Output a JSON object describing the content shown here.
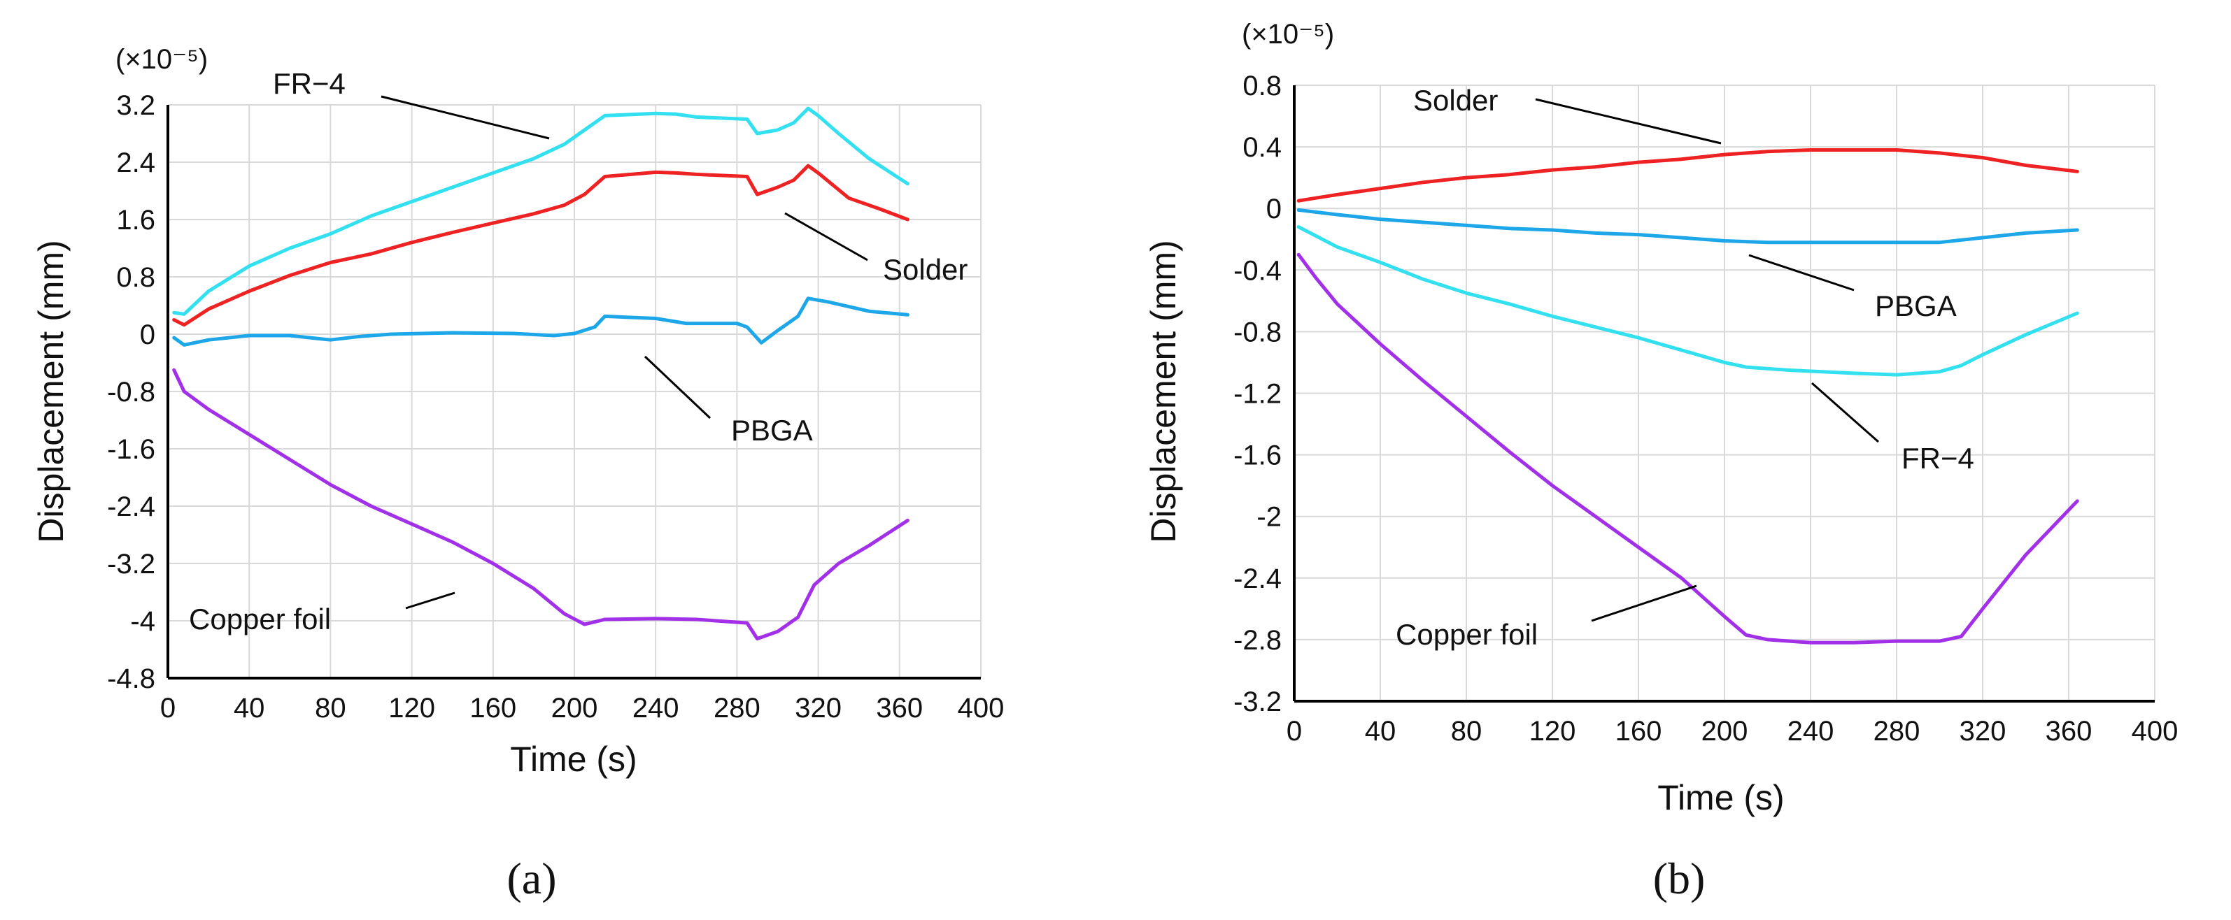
{
  "chart_data": [
    {
      "type": "line",
      "panel_label": "(a)",
      "multiplier_label": "(×10⁻⁵)",
      "xlabel": "Time (s)",
      "ylabel": "Displacement (mm)",
      "xlim": [
        0,
        400
      ],
      "ylim": [
        -4.8,
        3.2
      ],
      "xticks": [
        0,
        40,
        80,
        120,
        160,
        200,
        240,
        280,
        320,
        360,
        400
      ],
      "yticks": [
        3.2,
        2.4,
        1.6,
        0.8,
        0,
        -0.8,
        -1.6,
        -2.4,
        -3.2,
        -4,
        -4.8
      ],
      "xtick_labels": [
        "0",
        "40",
        "80",
        "120",
        "160",
        "200",
        "240",
        "280",
        "320",
        "360",
        "400"
      ],
      "ytick_labels": [
        "3.2",
        "2.4",
        "1.6",
        "0.8",
        "0",
        "-0.8",
        "-1.6",
        "-2.4",
        "-3.2",
        "-4",
        "-4.8"
      ],
      "grid": true,
      "series": [
        {
          "name": "FR−4",
          "color": "#33e0f0",
          "points": [
            [
              3,
              0.3
            ],
            [
              8,
              0.28
            ],
            [
              20,
              0.6
            ],
            [
              40,
              0.95
            ],
            [
              60,
              1.2
            ],
            [
              80,
              1.4
            ],
            [
              100,
              1.65
            ],
            [
              120,
              1.85
            ],
            [
              140,
              2.05
            ],
            [
              160,
              2.25
            ],
            [
              180,
              2.45
            ],
            [
              195,
              2.65
            ],
            [
              205,
              2.85
            ],
            [
              215,
              3.05
            ],
            [
              240,
              3.08
            ],
            [
              250,
              3.07
            ],
            [
              260,
              3.03
            ],
            [
              285,
              3.0
            ],
            [
              290,
              2.8
            ],
            [
              300,
              2.85
            ],
            [
              308,
              2.95
            ],
            [
              315,
              3.15
            ],
            [
              320,
              3.05
            ],
            [
              330,
              2.8
            ],
            [
              345,
              2.45
            ],
            [
              364,
              2.1
            ]
          ]
        },
        {
          "name": "Solder",
          "color": "#ee2222",
          "points": [
            [
              3,
              0.2
            ],
            [
              8,
              0.13
            ],
            [
              20,
              0.35
            ],
            [
              40,
              0.6
            ],
            [
              60,
              0.82
            ],
            [
              80,
              1.0
            ],
            [
              100,
              1.12
            ],
            [
              120,
              1.28
            ],
            [
              140,
              1.42
            ],
            [
              160,
              1.55
            ],
            [
              180,
              1.68
            ],
            [
              195,
              1.8
            ],
            [
              205,
              1.95
            ],
            [
              215,
              2.2
            ],
            [
              240,
              2.26
            ],
            [
              250,
              2.25
            ],
            [
              260,
              2.23
            ],
            [
              285,
              2.2
            ],
            [
              290,
              1.95
            ],
            [
              300,
              2.05
            ],
            [
              308,
              2.15
            ],
            [
              315,
              2.35
            ],
            [
              320,
              2.25
            ],
            [
              335,
              1.9
            ],
            [
              350,
              1.75
            ],
            [
              364,
              1.6
            ]
          ]
        },
        {
          "name": "PBGA",
          "color": "#1ea7e8",
          "points": [
            [
              3,
              -0.05
            ],
            [
              8,
              -0.15
            ],
            [
              20,
              -0.08
            ],
            [
              40,
              -0.02
            ],
            [
              60,
              -0.02
            ],
            [
              70,
              -0.05
            ],
            [
              80,
              -0.08
            ],
            [
              95,
              -0.03
            ],
            [
              110,
              0.0
            ],
            [
              140,
              0.02
            ],
            [
              170,
              0.01
            ],
            [
              190,
              -0.02
            ],
            [
              200,
              0.01
            ],
            [
              210,
              0.1
            ],
            [
              215,
              0.25
            ],
            [
              240,
              0.22
            ],
            [
              255,
              0.15
            ],
            [
              280,
              0.15
            ],
            [
              285,
              0.1
            ],
            [
              292,
              -0.12
            ],
            [
              300,
              0.05
            ],
            [
              310,
              0.25
            ],
            [
              315,
              0.5
            ],
            [
              325,
              0.45
            ],
            [
              345,
              0.32
            ],
            [
              364,
              0.27
            ]
          ]
        },
        {
          "name": "Copper foil",
          "color": "#a130e8",
          "points": [
            [
              3,
              -0.5
            ],
            [
              8,
              -0.8
            ],
            [
              20,
              -1.05
            ],
            [
              40,
              -1.4
            ],
            [
              60,
              -1.75
            ],
            [
              80,
              -2.1
            ],
            [
              100,
              -2.4
            ],
            [
              120,
              -2.65
            ],
            [
              140,
              -2.9
            ],
            [
              160,
              -3.2
            ],
            [
              180,
              -3.55
            ],
            [
              195,
              -3.9
            ],
            [
              205,
              -4.05
            ],
            [
              215,
              -3.98
            ],
            [
              240,
              -3.97
            ],
            [
              260,
              -3.98
            ],
            [
              285,
              -4.03
            ],
            [
              290,
              -4.25
            ],
            [
              300,
              -4.15
            ],
            [
              310,
              -3.95
            ],
            [
              318,
              -3.5
            ],
            [
              330,
              -3.2
            ],
            [
              345,
              -2.95
            ],
            [
              364,
              -2.6
            ]
          ]
        }
      ],
      "annotations": [
        {
          "text": "FR−4",
          "series": "FR−4"
        },
        {
          "text": "Solder",
          "series": "Solder"
        },
        {
          "text": "PBGA",
          "series": "PBGA"
        },
        {
          "text": "Copper foil",
          "series": "Copper foil"
        }
      ]
    },
    {
      "type": "line",
      "panel_label": "(b)",
      "multiplier_label": "(×10⁻⁵)",
      "xlabel": "Time (s)",
      "ylabel": "Displacement (mm)",
      "xlim": [
        0,
        400
      ],
      "ylim": [
        -3.2,
        0.8
      ],
      "xticks": [
        0,
        40,
        80,
        120,
        160,
        200,
        240,
        280,
        320,
        360,
        400
      ],
      "yticks": [
        0.8,
        0.4,
        0,
        -0.4,
        -0.8,
        -1.2,
        -1.6,
        -2,
        -2.4,
        -2.8,
        -3.2
      ],
      "xtick_labels": [
        "0",
        "40",
        "80",
        "120",
        "160",
        "200",
        "240",
        "280",
        "320",
        "360",
        "400"
      ],
      "ytick_labels": [
        "0.8",
        "0.4",
        "0",
        "-0.4",
        "-0.8",
        "-1.2",
        "-1.6",
        "-2",
        "-2.4",
        "-2.8",
        "-3.2"
      ],
      "grid": true,
      "series": [
        {
          "name": "Solder",
          "color": "#ee2222",
          "points": [
            [
              2,
              0.05
            ],
            [
              20,
              0.09
            ],
            [
              40,
              0.13
            ],
            [
              60,
              0.17
            ],
            [
              80,
              0.2
            ],
            [
              100,
              0.22
            ],
            [
              120,
              0.25
            ],
            [
              140,
              0.27
            ],
            [
              160,
              0.3
            ],
            [
              180,
              0.32
            ],
            [
              200,
              0.35
            ],
            [
              220,
              0.37
            ],
            [
              240,
              0.38
            ],
            [
              260,
              0.38
            ],
            [
              280,
              0.38
            ],
            [
              300,
              0.36
            ],
            [
              320,
              0.33
            ],
            [
              340,
              0.28
            ],
            [
              364,
              0.24
            ]
          ]
        },
        {
          "name": "PBGA",
          "color": "#1ea7e8",
          "points": [
            [
              2,
              -0.01
            ],
            [
              20,
              -0.04
            ],
            [
              40,
              -0.07
            ],
            [
              60,
              -0.09
            ],
            [
              80,
              -0.11
            ],
            [
              100,
              -0.13
            ],
            [
              120,
              -0.14
            ],
            [
              140,
              -0.16
            ],
            [
              160,
              -0.17
            ],
            [
              180,
              -0.19
            ],
            [
              200,
              -0.21
            ],
            [
              220,
              -0.22
            ],
            [
              240,
              -0.22
            ],
            [
              260,
              -0.22
            ],
            [
              280,
              -0.22
            ],
            [
              300,
              -0.22
            ],
            [
              320,
              -0.19
            ],
            [
              340,
              -0.16
            ],
            [
              364,
              -0.14
            ]
          ]
        },
        {
          "name": "FR−4",
          "color": "#33e0f0",
          "points": [
            [
              2,
              -0.12
            ],
            [
              20,
              -0.25
            ],
            [
              40,
              -0.35
            ],
            [
              60,
              -0.46
            ],
            [
              80,
              -0.55
            ],
            [
              100,
              -0.62
            ],
            [
              120,
              -0.7
            ],
            [
              140,
              -0.77
            ],
            [
              160,
              -0.84
            ],
            [
              180,
              -0.92
            ],
            [
              200,
              -1.0
            ],
            [
              210,
              -1.03
            ],
            [
              230,
              -1.05
            ],
            [
              260,
              -1.07
            ],
            [
              280,
              -1.08
            ],
            [
              300,
              -1.06
            ],
            [
              310,
              -1.02
            ],
            [
              320,
              -0.95
            ],
            [
              340,
              -0.82
            ],
            [
              364,
              -0.68
            ]
          ]
        },
        {
          "name": "Copper foil",
          "color": "#a130e8",
          "points": [
            [
              2,
              -0.3
            ],
            [
              10,
              -0.45
            ],
            [
              20,
              -0.62
            ],
            [
              40,
              -0.88
            ],
            [
              60,
              -1.12
            ],
            [
              80,
              -1.35
            ],
            [
              100,
              -1.58
            ],
            [
              120,
              -1.8
            ],
            [
              140,
              -2.0
            ],
            [
              160,
              -2.2
            ],
            [
              180,
              -2.4
            ],
            [
              200,
              -2.65
            ],
            [
              210,
              -2.77
            ],
            [
              220,
              -2.8
            ],
            [
              240,
              -2.82
            ],
            [
              260,
              -2.82
            ],
            [
              280,
              -2.81
            ],
            [
              300,
              -2.81
            ],
            [
              310,
              -2.78
            ],
            [
              320,
              -2.6
            ],
            [
              340,
              -2.25
            ],
            [
              364,
              -1.9
            ]
          ]
        }
      ],
      "annotations": [
        {
          "text": "Solder",
          "series": "Solder"
        },
        {
          "text": "PBGA",
          "series": "PBGA"
        },
        {
          "text": "FR−4",
          "series": "FR−4"
        },
        {
          "text": "Copper foil",
          "series": "Copper foil"
        }
      ]
    }
  ]
}
